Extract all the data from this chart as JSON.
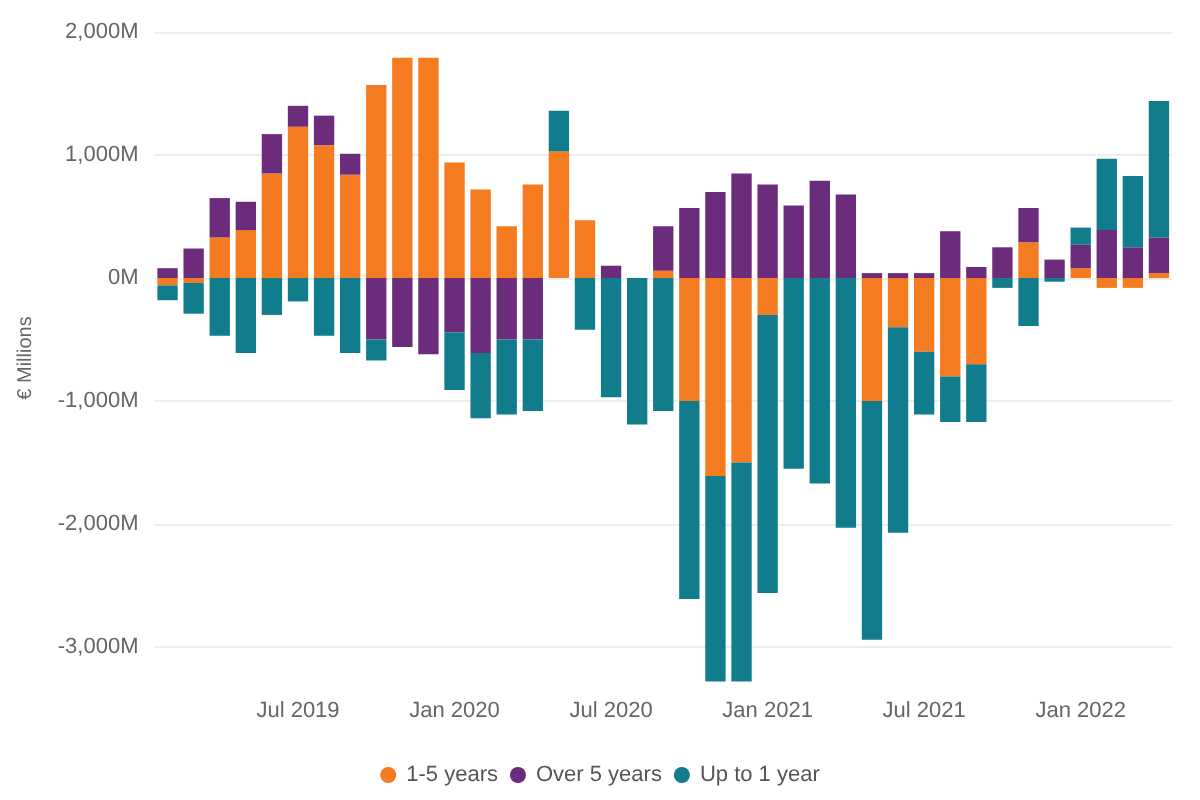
{
  "chart_data": {
    "type": "bar",
    "stacked": true,
    "ylabel": "€ Millions",
    "categories": [
      null,
      null,
      null,
      null,
      null,
      "Jul 2019",
      null,
      null,
      null,
      null,
      null,
      "Jan 2020",
      null,
      null,
      null,
      null,
      null,
      "Jul 2020",
      null,
      null,
      null,
      null,
      null,
      "Jan 2021",
      null,
      null,
      null,
      null,
      null,
      "Jul 2021",
      null,
      null,
      null,
      null,
      null,
      "Jan 2022",
      null,
      null,
      null
    ],
    "series": [
      {
        "name": "1-5 years",
        "color": "#f47b20",
        "values": [
          -60,
          -40,
          330,
          390,
          850,
          1230,
          1080,
          840,
          1570,
          1790,
          1790,
          940,
          720,
          420,
          760,
          1030,
          470,
          0,
          0,
          60,
          -1000,
          -1610,
          -1500,
          -300,
          0,
          0,
          0,
          -1000,
          -400,
          -600,
          -800,
          -700,
          0,
          290,
          0,
          80,
          -80,
          -80,
          40
        ]
      },
      {
        "name": "Over 5 years",
        "color": "#6b2d7b",
        "values": [
          80,
          240,
          320,
          230,
          320,
          170,
          240,
          170,
          -500,
          -560,
          -620,
          -440,
          -610,
          -500,
          -500,
          0,
          0,
          100,
          0,
          360,
          570,
          700,
          850,
          760,
          590,
          790,
          680,
          40,
          40,
          40,
          380,
          90,
          250,
          280,
          150,
          190,
          390,
          250,
          290
        ]
      },
      {
        "name": "Up to 1 year",
        "color": "#117d8c",
        "values": [
          -120,
          -250,
          -470,
          -610,
          -300,
          -190,
          -470,
          -610,
          -170,
          0,
          0,
          -470,
          -530,
          -610,
          -580,
          330,
          -420,
          -970,
          -1190,
          -1080,
          -1610,
          -1670,
          -1780,
          -2260,
          -1550,
          -1670,
          -2030,
          -1940,
          -1670,
          -510,
          -370,
          -470,
          -80,
          -390,
          -30,
          140,
          580,
          580,
          1110
        ]
      }
    ],
    "ylim": [
      -3300,
      2000
    ],
    "yticks": [
      {
        "value": -3000,
        "label": "-3,000M"
      },
      {
        "value": -2000,
        "label": "-2,000M"
      },
      {
        "value": -1000,
        "label": "-1,000M"
      },
      {
        "value": 0,
        "label": "0M"
      },
      {
        "value": 1000,
        "label": "1,000M"
      },
      {
        "value": 2000,
        "label": "2,000M"
      }
    ],
    "grid": "y",
    "legend": "bottom"
  }
}
